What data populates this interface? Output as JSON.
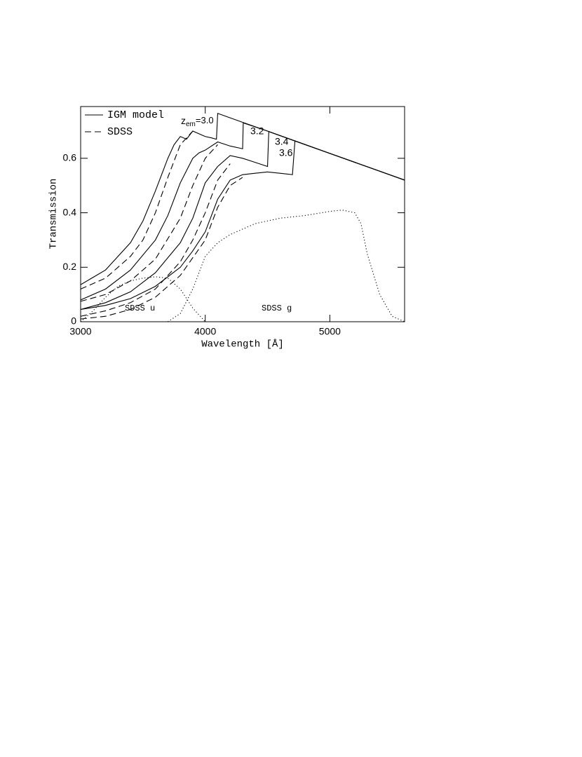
{
  "chart_data": {
    "type": "line",
    "xlabel": "Wavelength [Å]",
    "ylabel": "Transmission",
    "xlim": [
      3000,
      5600
    ],
    "ylim": [
      0,
      0.79
    ],
    "xticks": [
      3000,
      4000,
      5000
    ],
    "yticks": [
      0,
      0.2,
      0.4,
      0.6
    ],
    "legend": "top-left",
    "series": [
      {
        "name": "IGM model",
        "style": "solid",
        "color": "#000000",
        "x": [
          3000,
          3200,
          3400,
          3500,
          3600,
          3700,
          3750,
          3800,
          3850,
          3900,
          3950,
          4000,
          4050,
          4090,
          4100,
          4300,
          4500,
          4700,
          5000,
          5300,
          5600
        ],
        "values": [
          0.136,
          0.19,
          0.29,
          0.37,
          0.48,
          0.6,
          0.65,
          0.68,
          0.67,
          0.7,
          0.69,
          0.68,
          0.675,
          0.67,
          0.765,
          0.732,
          0.7,
          0.667,
          0.618,
          0.569,
          0.52
        ]
      },
      {
        "style": "solid",
        "color": "#000000",
        "x": [
          3000,
          3200,
          3400,
          3600,
          3700,
          3800,
          3900,
          3950,
          4000,
          4100,
          4200,
          4300,
          4305,
          4500,
          4700,
          5000,
          5300,
          5600
        ],
        "values": [
          0.08,
          0.12,
          0.19,
          0.3,
          0.39,
          0.51,
          0.6,
          0.62,
          0.63,
          0.66,
          0.645,
          0.635,
          0.73,
          0.7,
          0.667,
          0.618,
          0.569,
          0.52
        ]
      },
      {
        "style": "solid",
        "color": "#000000",
        "x": [
          3000,
          3200,
          3400,
          3600,
          3800,
          3900,
          4000,
          4100,
          4200,
          4300,
          4400,
          4500,
          4510,
          4700,
          5000,
          5300,
          5600
        ],
        "values": [
          0.045,
          0.07,
          0.11,
          0.18,
          0.29,
          0.38,
          0.51,
          0.57,
          0.61,
          0.6,
          0.585,
          0.57,
          0.698,
          0.667,
          0.618,
          0.569,
          0.52
        ]
      },
      {
        "style": "solid",
        "color": "#000000",
        "x": [
          3000,
          3200,
          3400,
          3600,
          3800,
          3900,
          4000,
          4100,
          4200,
          4300,
          4400,
          4500,
          4600,
          4700,
          4720,
          5000,
          5300,
          5600
        ],
        "values": [
          0.045,
          0.06,
          0.085,
          0.13,
          0.2,
          0.26,
          0.33,
          0.45,
          0.52,
          0.54,
          0.545,
          0.55,
          0.545,
          0.54,
          0.664,
          0.618,
          0.569,
          0.52
        ]
      },
      {
        "name": "SDSS",
        "style": "dashed",
        "color": "#000000",
        "x": [
          3000,
          3200,
          3400,
          3500,
          3600,
          3700,
          3800,
          3900
        ],
        "values": [
          0.12,
          0.16,
          0.24,
          0.3,
          0.4,
          0.53,
          0.65,
          0.7
        ]
      },
      {
        "style": "dashed",
        "color": "#000000",
        "x": [
          3000,
          3200,
          3400,
          3600,
          3800,
          3900,
          4000,
          4100
        ],
        "values": [
          0.075,
          0.1,
          0.15,
          0.23,
          0.38,
          0.5,
          0.6,
          0.65
        ]
      },
      {
        "style": "dashed",
        "color": "#000000",
        "x": [
          3000,
          3200,
          3400,
          3600,
          3800,
          3900,
          4000,
          4100,
          4200
        ],
        "values": [
          0.02,
          0.04,
          0.07,
          0.12,
          0.22,
          0.3,
          0.4,
          0.52,
          0.58
        ]
      },
      {
        "style": "dashed",
        "color": "#000000",
        "x": [
          3000,
          3200,
          3400,
          3600,
          3800,
          4000,
          4100,
          4200,
          4300
        ],
        "values": [
          0.01,
          0.02,
          0.045,
          0.09,
          0.17,
          0.3,
          0.42,
          0.5,
          0.53
        ]
      },
      {
        "style": "dotted",
        "color": "#000000",
        "x": [
          3000,
          3100,
          3200,
          3300,
          3400,
          3500,
          3600,
          3700,
          3800,
          3900,
          4000
        ],
        "values": [
          0.0,
          0.04,
          0.09,
          0.13,
          0.15,
          0.16,
          0.165,
          0.16,
          0.12,
          0.05,
          0.0
        ]
      },
      {
        "style": "dotted",
        "color": "#000000",
        "x": [
          3700,
          3800,
          3900,
          4000,
          4100,
          4200,
          4400,
          4600,
          4800,
          5000,
          5100,
          5200,
          5250,
          5300,
          5400,
          5500,
          5600
        ],
        "values": [
          0.0,
          0.03,
          0.12,
          0.24,
          0.29,
          0.32,
          0.36,
          0.38,
          0.39,
          0.405,
          0.41,
          0.4,
          0.36,
          0.25,
          0.1,
          0.02,
          0.0
        ]
      }
    ],
    "z_label": {
      "base": "z",
      "sub": "em",
      "rest": "=3.0"
    },
    "annotations": [
      "3.2",
      "3.4",
      "3.6",
      "SDSS u",
      "SDSS g"
    ]
  }
}
